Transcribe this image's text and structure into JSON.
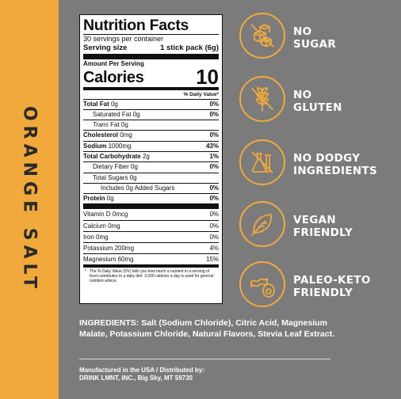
{
  "side_label": "ORANGE SALT",
  "nutrition": {
    "title": "Nutrition Facts",
    "servings": "30 servings per container",
    "serving_size_label": "Serving size",
    "serving_size_value": "1 stick pack (6g)",
    "amount_per_serving": "Amount Per Serving",
    "calories_label": "Calories",
    "calories_value": "10",
    "dv_header": "% Daily Value*",
    "rows": [
      {
        "label": "Total Fat",
        "amount": "0g",
        "dv": "0%"
      },
      {
        "label": "Saturated Fat",
        "amount": "0g",
        "dv": "0%"
      },
      {
        "label": "Trans",
        "amount": "Fat 0g",
        "dv": ""
      },
      {
        "label": "Cholesterol",
        "amount": "0mg",
        "dv": "0%"
      },
      {
        "label": "Sodium",
        "amount": "1000mg",
        "dv": "43%"
      },
      {
        "label": "Total Carbohydrate",
        "amount": "2g",
        "dv": "1%"
      },
      {
        "label": "Dietary Fiber",
        "amount": "0g",
        "dv": "0%"
      },
      {
        "label": "Total Sugars",
        "amount": "0g",
        "dv": ""
      },
      {
        "label": "Includes 0g Added Sugars",
        "amount": "",
        "dv": "0%"
      },
      {
        "label": "Protein",
        "amount": "0g",
        "dv": "0%"
      }
    ],
    "vitamins": [
      {
        "label": "Vitamin D 0mcg",
        "dv": "0%"
      },
      {
        "label": "Calcium 0mg",
        "dv": "0%"
      },
      {
        "label": "Iron 0mg",
        "dv": "0%"
      },
      {
        "label": "Potassium 200mg",
        "dv": "4%"
      },
      {
        "label": "Magnesium 60mg",
        "dv": "15%"
      }
    ],
    "footnote_star": "*",
    "footnote": "The % Daily Value (DV) tells you how much a nutrient in a serving of food contributes to a daily diet. 2,000 calories a day is used for general nutrition advice."
  },
  "claims": [
    {
      "icon": "sugar-cubes-crossed-icon",
      "line1": "NO",
      "line2": "SUGAR"
    },
    {
      "icon": "wheat-icon",
      "line1": "NO",
      "line2": "GLUTEN"
    },
    {
      "icon": "flask-crossed-icon",
      "line1": "NO DODGY",
      "line2": "INGREDIENTS"
    },
    {
      "icon": "leaf-icon",
      "line1": "VEGAN",
      "line2": "FRIENDLY"
    },
    {
      "icon": "bacon-egg-icon",
      "line1": "PALEO-KETO",
      "line2": "FRIENDLY"
    }
  ],
  "ingredients": {
    "label": "INGREDIENTS:",
    "text": "Salt (Sodium Chloride), Citric Acid, Magnesium Malate, Potassium Chloride, Natural Flavors, Stevia Leaf Extract."
  },
  "manufacturer": {
    "line1": "Manufactured in the USA / Distributed by:",
    "line2": "DRINK LMNT, INC., Big Sky, MT 59730"
  },
  "colors": {
    "accent": "#f2a93b",
    "background": "#7b7b7b",
    "text": "#ffffff"
  }
}
